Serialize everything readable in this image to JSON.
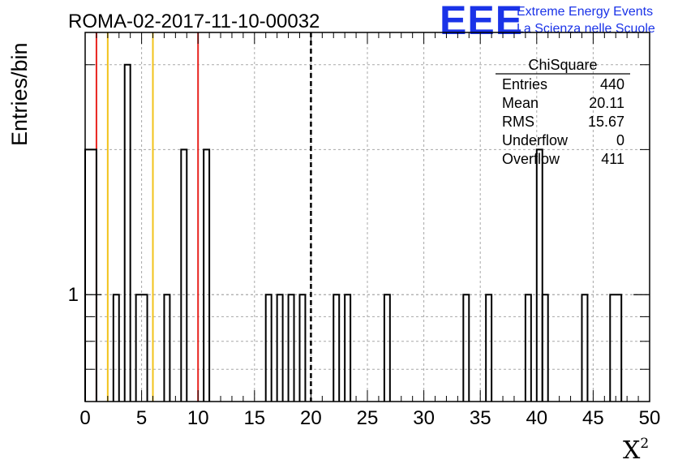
{
  "header": {
    "title": "ROMA-02-2017-11-10-00032",
    "logo_letters": "EEE",
    "logo_line1": "Extreme Energy Events",
    "logo_line2": "La Scienza nelle Scuole",
    "logo_color": "#1a33e8"
  },
  "chart_data": {
    "type": "bar",
    "title": "ROMA-02-2017-11-10-00032",
    "xlabel": "X",
    "xlabel_superscript": "2",
    "ylabel": "Entries/bin",
    "xlim": [
      0,
      50
    ],
    "y_scale": "log",
    "ylim": [
      0.6,
      3.5
    ],
    "grid": true,
    "xticks": [
      "0",
      "5",
      "10",
      "15",
      "20",
      "25",
      "30",
      "35",
      "40",
      "45",
      "50"
    ],
    "yticks": [
      "1"
    ],
    "bins": [
      {
        "x0": 0.0,
        "x1": 1.0,
        "count": 2
      },
      {
        "x0": 2.5,
        "x1": 3.0,
        "count": 1
      },
      {
        "x0": 3.5,
        "x1": 4.0,
        "count": 3
      },
      {
        "x0": 4.5,
        "x1": 5.5,
        "count": 1
      },
      {
        "x0": 7.0,
        "x1": 7.5,
        "count": 1
      },
      {
        "x0": 8.5,
        "x1": 9.0,
        "count": 2
      },
      {
        "x0": 10.5,
        "x1": 11.0,
        "count": 2
      },
      {
        "x0": 16.0,
        "x1": 16.5,
        "count": 1
      },
      {
        "x0": 17.0,
        "x1": 17.5,
        "count": 1
      },
      {
        "x0": 18.0,
        "x1": 18.5,
        "count": 1
      },
      {
        "x0": 19.0,
        "x1": 19.5,
        "count": 1
      },
      {
        "x0": 22.0,
        "x1": 22.5,
        "count": 1
      },
      {
        "x0": 23.0,
        "x1": 23.5,
        "count": 1
      },
      {
        "x0": 26.5,
        "x1": 27.0,
        "count": 1
      },
      {
        "x0": 33.5,
        "x1": 34.0,
        "count": 1
      },
      {
        "x0": 35.5,
        "x1": 36.0,
        "count": 1
      },
      {
        "x0": 39.0,
        "x1": 39.5,
        "count": 1
      },
      {
        "x0": 40.0,
        "x1": 40.5,
        "count": 2
      },
      {
        "x0": 40.5,
        "x1": 41.0,
        "count": 1
      },
      {
        "x0": 44.0,
        "x1": 44.5,
        "count": 1
      },
      {
        "x0": 46.5,
        "x1": 47.5,
        "count": 1
      }
    ],
    "reference_lines": [
      {
        "x": 1.0,
        "color": "#e8231e",
        "style": "solid"
      },
      {
        "x": 2.0,
        "color": "#f2c21a",
        "style": "solid"
      },
      {
        "x": 6.0,
        "color": "#f2c21a",
        "style": "solid"
      },
      {
        "x": 10.0,
        "color": "#e8231e",
        "style": "solid"
      },
      {
        "x": 20.0,
        "color": "#000000",
        "style": "dashed"
      }
    ],
    "stats_box": {
      "title": "ChiSquare",
      "rows": [
        {
          "label": "Entries",
          "value": "440"
        },
        {
          "label": "Mean",
          "value": "20.11"
        },
        {
          "label": "RMS",
          "value": "15.67"
        },
        {
          "label": "Underflow",
          "value": "0"
        },
        {
          "label": "Overflow",
          "value": "411"
        }
      ]
    }
  }
}
